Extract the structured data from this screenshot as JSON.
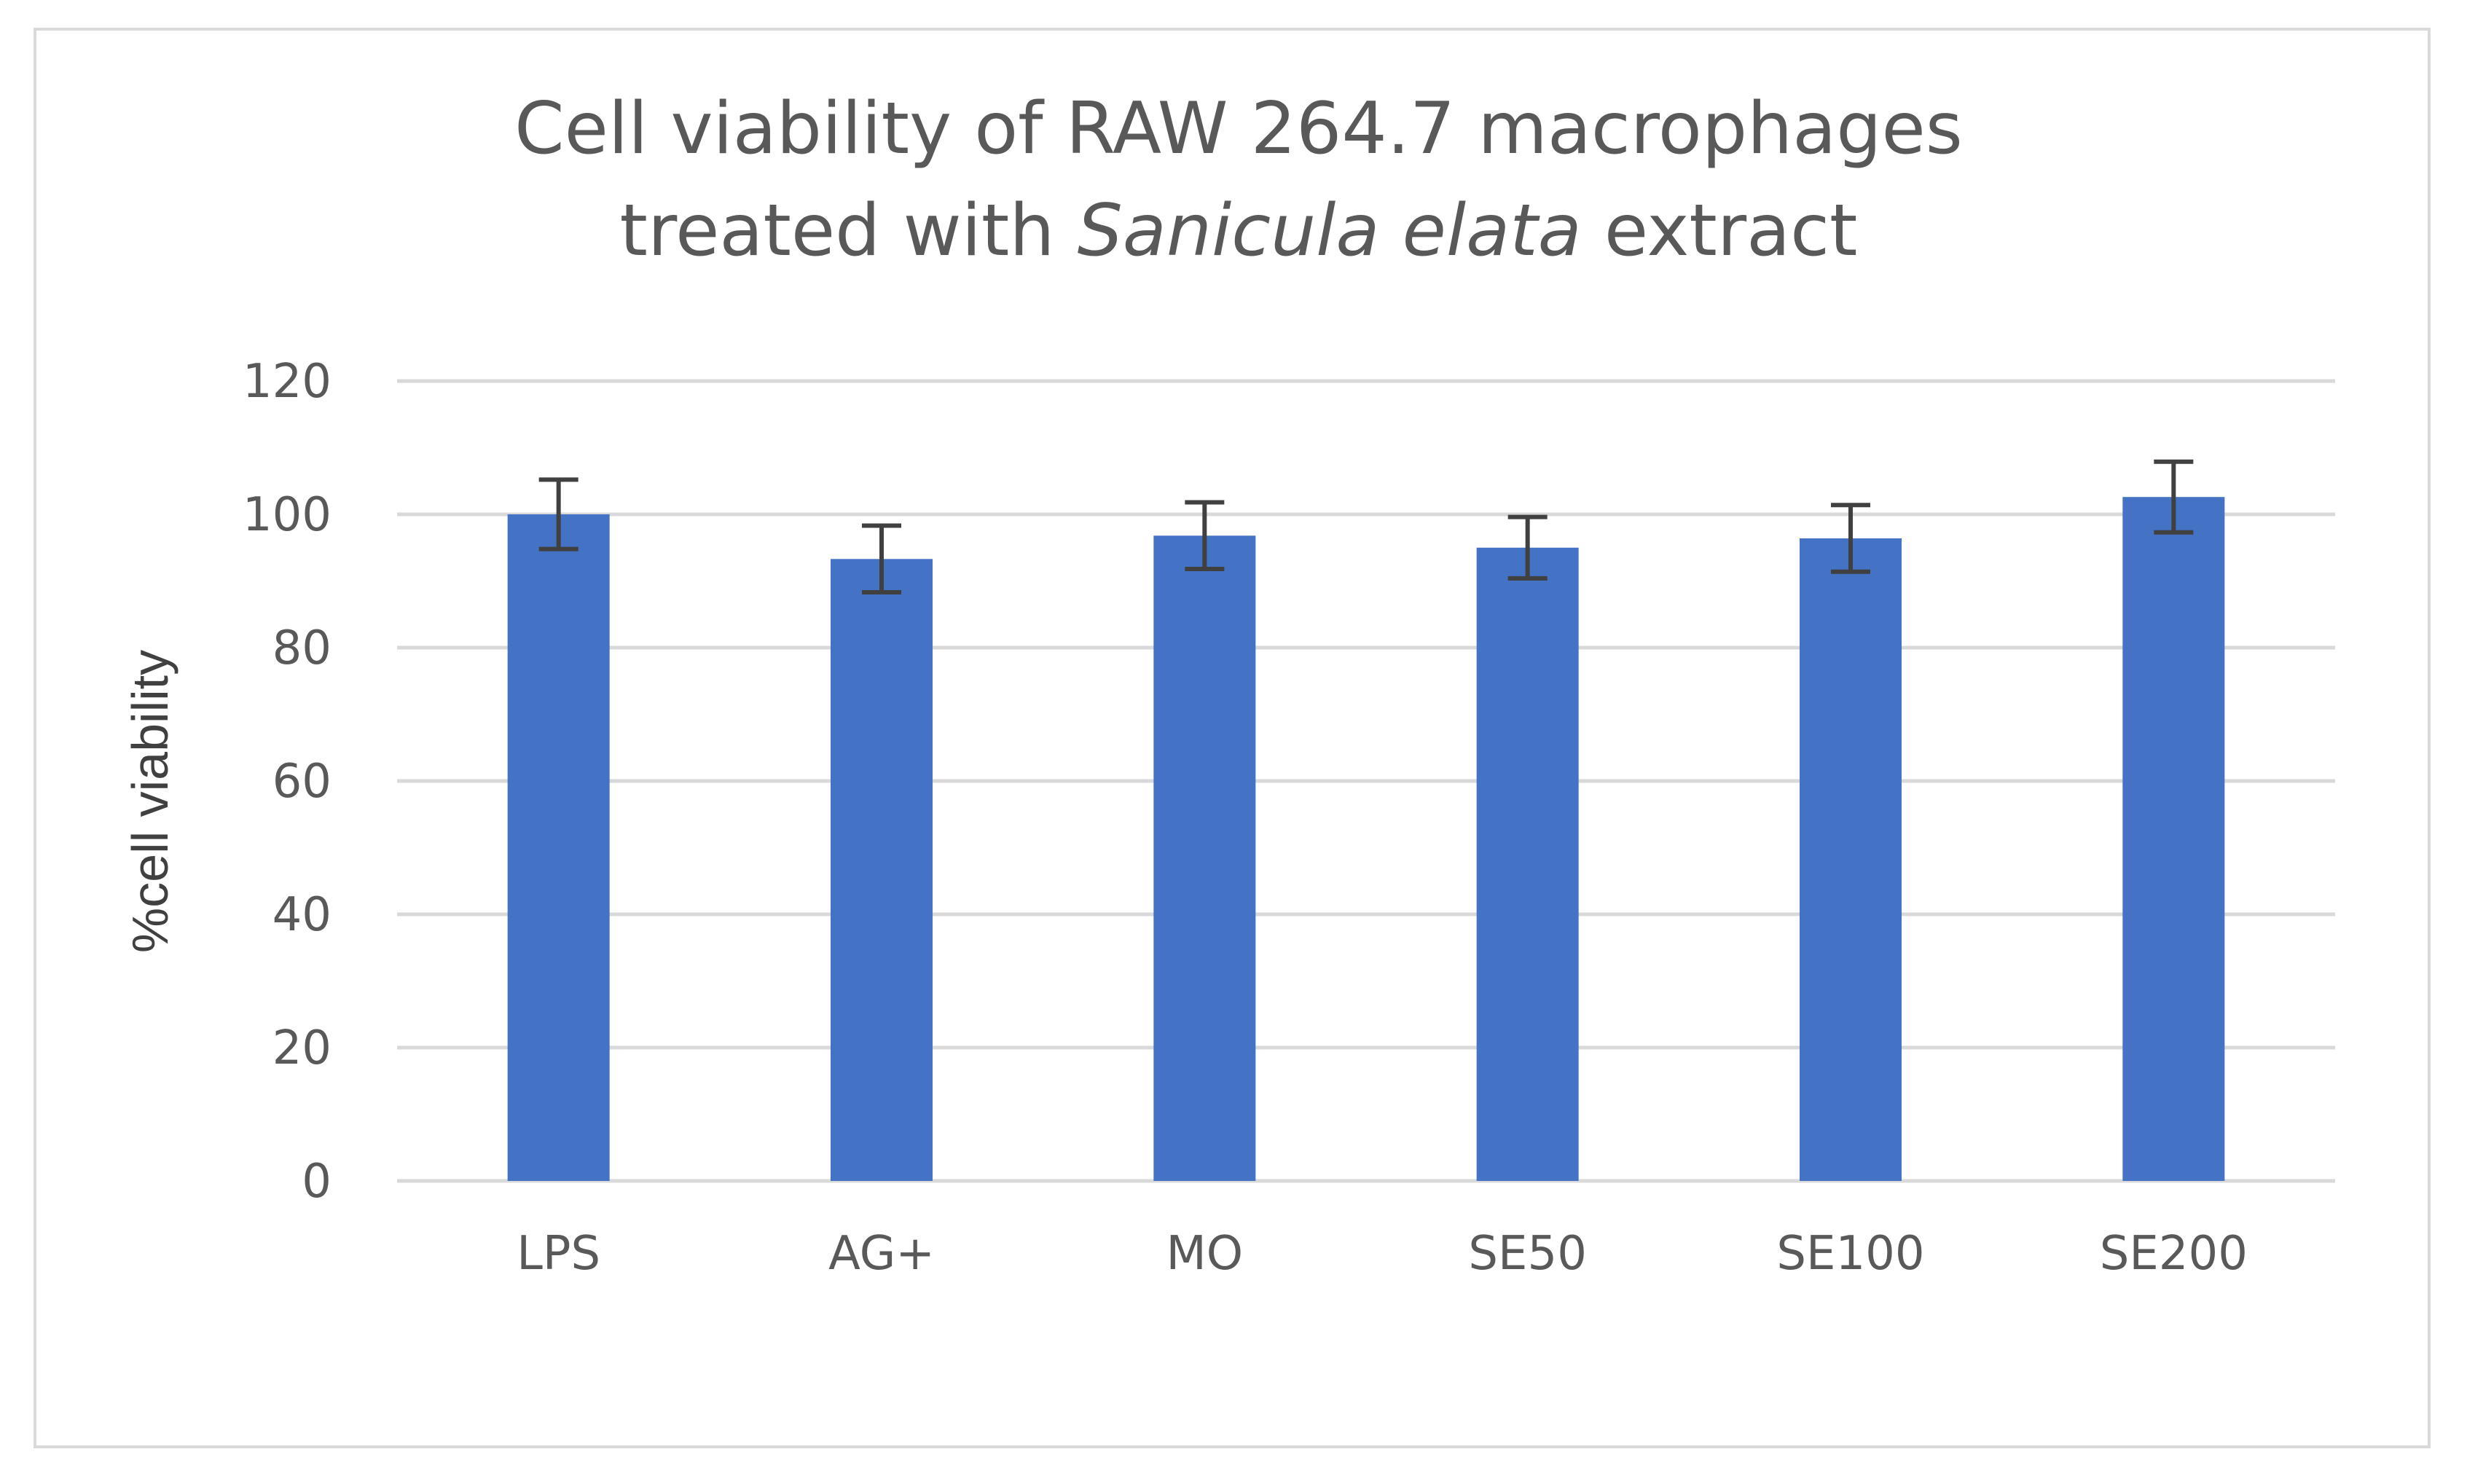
{
  "chart_data": {
    "type": "bar",
    "title_line1": "Cell viability of RAW 264.7 macrophages",
    "title_line2_pre": "treated with ",
    "title_line2_italic": "Sanicula elata",
    "title_line2_post": " extract",
    "xlabel": "",
    "ylabel": "%cell viability",
    "categories": [
      "LPS",
      "AG+",
      "MO",
      "SE50",
      "SE100",
      "SE200"
    ],
    "values": [
      100,
      93.3,
      96.8,
      95,
      96.4,
      102.6
    ],
    "errors": [
      5.2,
      5,
      5,
      4.6,
      5,
      5.3
    ],
    "ylim": [
      0,
      120
    ],
    "yticks": [
      0,
      20,
      40,
      60,
      80,
      100,
      120
    ],
    "grid": true,
    "bar_color": "#4472c4",
    "error_color": "#404040",
    "grid_color": "#d9d9d9"
  }
}
